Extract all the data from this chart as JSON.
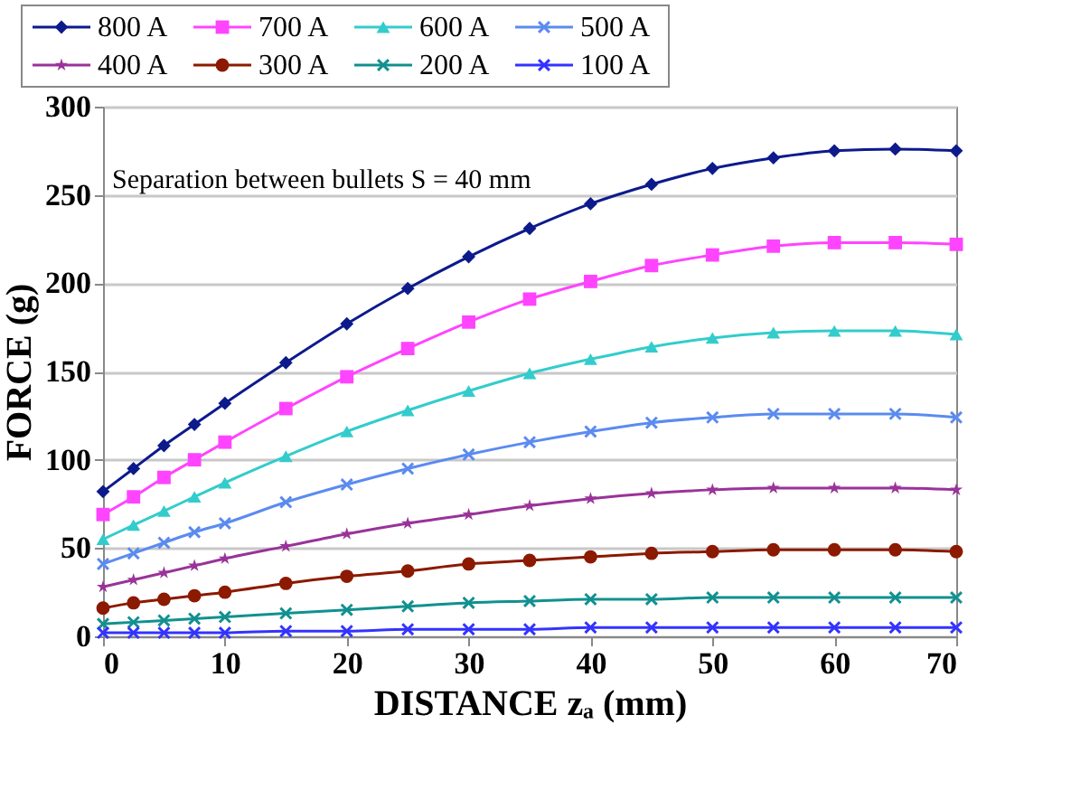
{
  "chart_data": {
    "type": "line",
    "xlabel": "DISTANCE  zₐ (mm)",
    "ylabel": "FORCE (g)",
    "x": [
      0,
      2.5,
      5,
      7.5,
      10,
      15,
      20,
      25,
      30,
      35,
      40,
      45,
      50,
      55,
      60,
      65,
      70
    ],
    "series": [
      {
        "name": "800 A",
        "color": "#0d1a8c",
        "marker": "diamond",
        "values": [
          82,
          95,
          108,
          120,
          132,
          155,
          177,
          197,
          215,
          231,
          245,
          256,
          265,
          271,
          275,
          276,
          275
        ]
      },
      {
        "name": "700 A",
        "color": "#ff44ff",
        "marker": "square",
        "values": [
          69,
          79,
          90,
          100,
          110,
          129,
          147,
          163,
          178,
          191,
          201,
          210,
          216,
          221,
          223,
          223,
          222
        ]
      },
      {
        "name": "600 A",
        "color": "#33cccc",
        "marker": "triangle",
        "values": [
          55,
          63,
          71,
          79,
          87,
          102,
          116,
          128,
          139,
          149,
          157,
          164,
          169,
          172,
          173,
          173,
          171
        ]
      },
      {
        "name": "500 A",
        "color": "#5b8bf0",
        "marker": "cross",
        "values": [
          41,
          47,
          53,
          59,
          64,
          76,
          86,
          95,
          103,
          110,
          116,
          121,
          124,
          126,
          126,
          126,
          124
        ]
      },
      {
        "name": "400 A",
        "color": "#993399",
        "marker": "star",
        "values": [
          28,
          32,
          36,
          40,
          44,
          51,
          58,
          64,
          69,
          74,
          78,
          81,
          83,
          84,
          84,
          84,
          83
        ]
      },
      {
        "name": "300 A",
        "color": "#8b1a00",
        "marker": "circle",
        "values": [
          16,
          19,
          21,
          23,
          25,
          30,
          34,
          37,
          41,
          43,
          45,
          47,
          48,
          49,
          49,
          49,
          48
        ]
      },
      {
        "name": "200 A",
        "color": "#129090",
        "marker": "cross",
        "values": [
          7,
          8,
          9,
          10,
          11,
          13,
          15,
          17,
          19,
          20,
          21,
          21,
          22,
          22,
          22,
          22,
          22
        ]
      },
      {
        "name": "100 A",
        "color": "#3333ff",
        "marker": "cross",
        "values": [
          2,
          2,
          2,
          2,
          2,
          3,
          3,
          4,
          4,
          4,
          5,
          5,
          5,
          5,
          5,
          5,
          5
        ]
      }
    ],
    "xlim": [
      0,
      70
    ],
    "xticks": [
      0,
      10,
      20,
      30,
      40,
      50,
      60,
      70
    ],
    "ylim": [
      0,
      300
    ],
    "yticks": [
      0,
      50,
      100,
      150,
      200,
      250,
      300
    ],
    "grid": "y",
    "legend": "top left",
    "line_style": "solid",
    "annotations": [
      "Separation between bullets  S = 40 mm"
    ]
  }
}
